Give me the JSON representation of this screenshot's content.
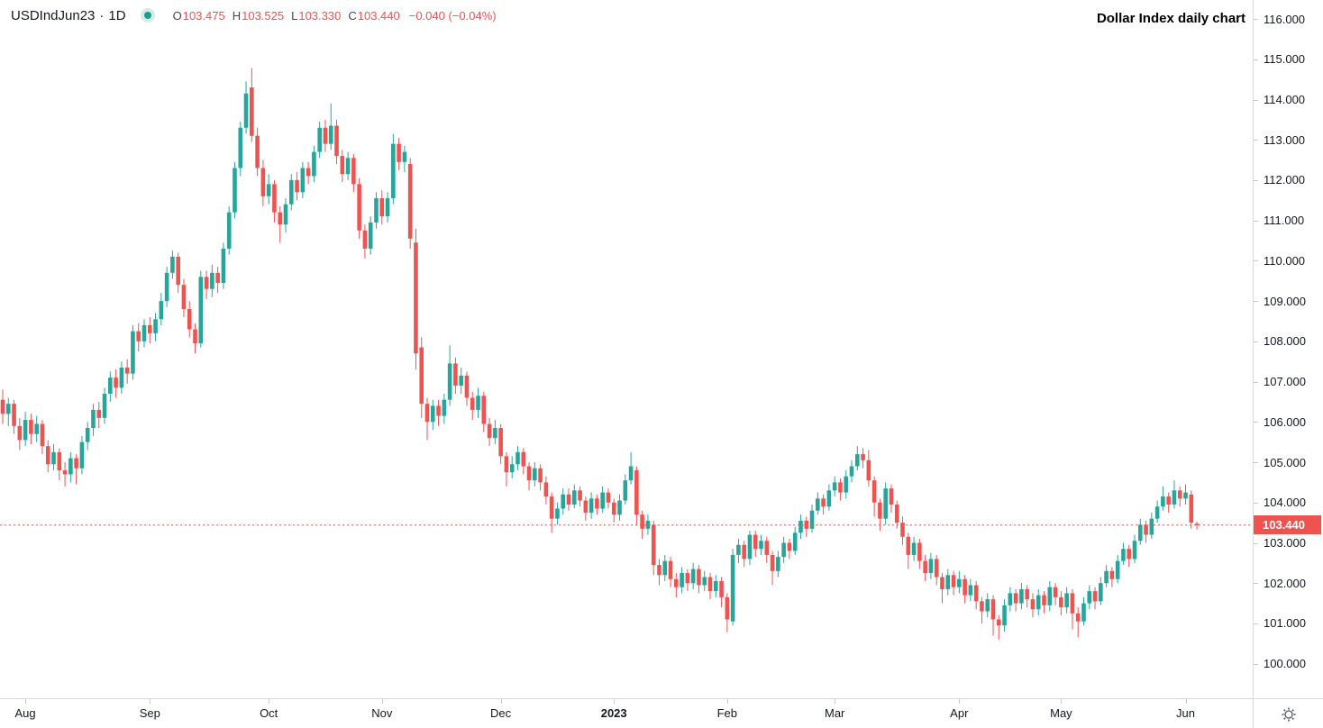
{
  "header": {
    "symbol": "USDIndJun23",
    "separator": "·",
    "interval": "1D",
    "ohlc_items": [
      {
        "label": "O",
        "value": "103.475"
      },
      {
        "label": "H",
        "value": "103.525"
      },
      {
        "label": "L",
        "value": "103.330"
      },
      {
        "label": "C",
        "value": "103.440"
      }
    ],
    "change": "−0.040 (−0.04%)"
  },
  "title": "Dollar Index daily chart",
  "price_axis": {
    "last_price_label": "103.440"
  },
  "colors": {
    "up": "#26a69a",
    "down": "#ef5350",
    "last_price": "#ef5350",
    "text": "#131722",
    "axis_line": "#d6d9de"
  },
  "chart_data": {
    "type": "candlestick",
    "title": "Dollar Index daily chart",
    "symbol": "USDIndJun23",
    "interval": "1D",
    "last_close": 103.44,
    "ohlc_last": {
      "open": 103.475,
      "high": 103.525,
      "low": 103.33,
      "close": 103.44,
      "change": -0.04,
      "change_pct": "-0.04%"
    },
    "ylim": [
      99.3,
      116.5
    ],
    "grid": false,
    "price_ticks": [
      116,
      115,
      114,
      113,
      112,
      111,
      110,
      109,
      108,
      107,
      106,
      105,
      104,
      103,
      102,
      101,
      100
    ],
    "time_ticks": [
      {
        "label": "Aug",
        "index": 4
      },
      {
        "label": "Sep",
        "index": 26
      },
      {
        "label": "Oct",
        "index": 47
      },
      {
        "label": "Nov",
        "index": 67
      },
      {
        "label": "Dec",
        "index": 88
      },
      {
        "label": "2023",
        "index": 108,
        "bold": true
      },
      {
        "label": "Feb",
        "index": 128
      },
      {
        "label": "Mar",
        "index": 147
      },
      {
        "label": "Apr",
        "index": 169
      },
      {
        "label": "May",
        "index": 187
      },
      {
        "label": "Jun",
        "index": 209
      }
    ],
    "candles": [
      [
        106.55,
        106.8,
        105.95,
        106.2
      ],
      [
        106.2,
        106.6,
        105.9,
        106.45
      ],
      [
        106.45,
        106.55,
        105.7,
        105.9
      ],
      [
        105.9,
        106.1,
        105.3,
        105.55
      ],
      [
        105.55,
        106.25,
        105.4,
        106.05
      ],
      [
        106.05,
        106.2,
        105.45,
        105.7
      ],
      [
        105.7,
        106.15,
        105.5,
        105.95
      ],
      [
        105.95,
        106.05,
        105.2,
        105.4
      ],
      [
        105.4,
        105.55,
        104.75,
        104.95
      ],
      [
        104.95,
        105.45,
        104.8,
        105.25
      ],
      [
        105.25,
        105.35,
        104.55,
        104.8
      ],
      [
        104.8,
        105.0,
        104.4,
        104.7
      ],
      [
        104.7,
        105.25,
        104.5,
        105.1
      ],
      [
        105.1,
        105.2,
        104.45,
        104.85
      ],
      [
        104.85,
        105.65,
        104.7,
        105.5
      ],
      [
        105.5,
        106.0,
        105.3,
        105.85
      ],
      [
        105.85,
        106.45,
        105.65,
        106.3
      ],
      [
        106.3,
        106.5,
        105.85,
        106.1
      ],
      [
        106.1,
        106.85,
        105.95,
        106.7
      ],
      [
        106.7,
        107.25,
        106.5,
        107.1
      ],
      [
        107.1,
        107.3,
        106.6,
        106.85
      ],
      [
        106.85,
        107.5,
        106.7,
        107.35
      ],
      [
        107.35,
        107.55,
        106.95,
        107.2
      ],
      [
        107.2,
        108.4,
        107.05,
        108.25
      ],
      [
        108.25,
        108.45,
        107.75,
        108.0
      ],
      [
        108.0,
        108.55,
        107.85,
        108.4
      ],
      [
        108.4,
        108.6,
        107.95,
        108.2
      ],
      [
        108.2,
        108.7,
        108.0,
        108.55
      ],
      [
        108.55,
        109.2,
        108.4,
        109.0
      ],
      [
        109.0,
        109.85,
        108.85,
        109.7
      ],
      [
        109.7,
        110.25,
        109.55,
        110.1
      ],
      [
        110.1,
        110.2,
        109.2,
        109.4
      ],
      [
        109.4,
        109.55,
        108.6,
        108.8
      ],
      [
        108.8,
        109.0,
        108.1,
        108.3
      ],
      [
        108.3,
        108.45,
        107.7,
        107.95
      ],
      [
        107.95,
        109.75,
        107.85,
        109.6
      ],
      [
        109.6,
        109.75,
        109.05,
        109.3
      ],
      [
        109.3,
        109.9,
        109.1,
        109.7
      ],
      [
        109.7,
        109.85,
        109.2,
        109.45
      ],
      [
        109.45,
        110.45,
        109.3,
        110.3
      ],
      [
        110.3,
        111.35,
        110.15,
        111.2
      ],
      [
        111.2,
        112.45,
        111.05,
        112.3
      ],
      [
        112.3,
        113.45,
        112.1,
        113.3
      ],
      [
        113.3,
        114.45,
        113.15,
        114.15
      ],
      [
        114.3,
        114.78,
        112.95,
        113.1
      ],
      [
        113.1,
        113.3,
        112.1,
        112.3
      ],
      [
        112.3,
        112.5,
        111.35,
        111.6
      ],
      [
        111.6,
        112.15,
        111.4,
        111.9
      ],
      [
        111.9,
        112.0,
        110.95,
        111.2
      ],
      [
        111.2,
        111.35,
        110.45,
        110.9
      ],
      [
        110.9,
        111.55,
        110.7,
        111.4
      ],
      [
        111.4,
        112.15,
        111.25,
        112.0
      ],
      [
        112.0,
        112.2,
        111.5,
        111.7
      ],
      [
        111.7,
        112.45,
        111.55,
        112.3
      ],
      [
        112.3,
        112.45,
        111.9,
        112.1
      ],
      [
        112.1,
        112.85,
        111.95,
        112.7
      ],
      [
        112.7,
        113.45,
        112.55,
        113.3
      ],
      [
        113.3,
        113.5,
        112.7,
        112.9
      ],
      [
        112.9,
        113.9,
        112.75,
        113.35
      ],
      [
        113.35,
        113.5,
        112.4,
        112.6
      ],
      [
        112.6,
        112.75,
        111.95,
        112.15
      ],
      [
        112.15,
        112.7,
        112.0,
        112.55
      ],
      [
        112.55,
        112.65,
        111.7,
        111.9
      ],
      [
        111.9,
        112.05,
        110.55,
        110.75
      ],
      [
        110.75,
        110.9,
        110.05,
        110.3
      ],
      [
        110.3,
        111.1,
        110.15,
        110.95
      ],
      [
        110.95,
        111.7,
        110.8,
        111.55
      ],
      [
        111.55,
        111.75,
        110.9,
        111.1
      ],
      [
        111.1,
        111.7,
        110.95,
        111.55
      ],
      [
        111.55,
        113.15,
        111.4,
        112.9
      ],
      [
        112.9,
        113.05,
        112.25,
        112.45
      ],
      [
        112.45,
        112.85,
        112.2,
        112.7
      ],
      [
        112.4,
        112.55,
        110.3,
        110.55
      ],
      [
        110.45,
        110.8,
        107.3,
        107.7
      ],
      [
        107.85,
        108.1,
        106.1,
        106.45
      ],
      [
        106.45,
        106.6,
        105.55,
        106.0
      ],
      [
        106.0,
        106.55,
        105.8,
        106.4
      ],
      [
        106.4,
        106.55,
        105.9,
        106.15
      ],
      [
        106.15,
        106.7,
        105.95,
        106.55
      ],
      [
        106.55,
        107.9,
        106.4,
        107.45
      ],
      [
        107.45,
        107.6,
        106.7,
        106.9
      ],
      [
        106.9,
        107.35,
        106.7,
        107.15
      ],
      [
        107.15,
        107.25,
        106.4,
        106.6
      ],
      [
        106.6,
        106.75,
        106.05,
        106.3
      ],
      [
        106.3,
        106.85,
        106.1,
        106.65
      ],
      [
        106.65,
        106.75,
        105.75,
        105.95
      ],
      [
        105.95,
        106.1,
        105.4,
        105.6
      ],
      [
        105.6,
        106.05,
        105.45,
        105.85
      ],
      [
        105.85,
        105.95,
        104.95,
        105.15
      ],
      [
        105.15,
        105.25,
        104.4,
        104.75
      ],
      [
        104.75,
        105.15,
        104.6,
        104.95
      ],
      [
        104.95,
        105.4,
        104.8,
        105.25
      ],
      [
        105.25,
        105.35,
        104.7,
        104.9
      ],
      [
        104.9,
        105.0,
        104.3,
        104.55
      ],
      [
        104.55,
        105.0,
        104.4,
        104.85
      ],
      [
        104.85,
        104.95,
        104.3,
        104.5
      ],
      [
        104.5,
        104.65,
        103.95,
        104.15
      ],
      [
        104.15,
        104.25,
        103.25,
        103.6
      ],
      [
        103.6,
        104.0,
        103.45,
        103.85
      ],
      [
        103.85,
        104.35,
        103.7,
        104.2
      ],
      [
        104.2,
        104.35,
        103.8,
        103.95
      ],
      [
        103.95,
        104.45,
        103.85,
        104.3
      ],
      [
        104.3,
        104.4,
        103.9,
        104.05
      ],
      [
        104.05,
        104.15,
        103.55,
        103.75
      ],
      [
        103.75,
        104.25,
        103.6,
        104.1
      ],
      [
        104.1,
        104.2,
        103.7,
        103.85
      ],
      [
        103.85,
        104.4,
        103.75,
        104.25
      ],
      [
        104.25,
        104.35,
        103.85,
        104.0
      ],
      [
        104.0,
        104.1,
        103.5,
        103.7
      ],
      [
        103.7,
        104.2,
        103.55,
        104.05
      ],
      [
        104.05,
        104.7,
        103.95,
        104.55
      ],
      [
        104.55,
        105.25,
        104.45,
        104.9
      ],
      [
        104.8,
        104.9,
        103.45,
        103.7
      ],
      [
        103.7,
        103.8,
        103.1,
        103.35
      ],
      [
        103.35,
        103.7,
        103.2,
        103.55
      ],
      [
        103.45,
        103.55,
        102.2,
        102.45
      ],
      [
        102.45,
        102.6,
        101.95,
        102.2
      ],
      [
        102.2,
        102.7,
        102.05,
        102.55
      ],
      [
        102.55,
        102.65,
        101.9,
        102.1
      ],
      [
        102.1,
        102.25,
        101.65,
        101.9
      ],
      [
        101.9,
        102.4,
        101.75,
        102.25
      ],
      [
        102.25,
        102.35,
        101.8,
        102.0
      ],
      [
        102.0,
        102.5,
        101.85,
        102.35
      ],
      [
        102.35,
        102.45,
        101.75,
        101.95
      ],
      [
        101.95,
        102.3,
        101.8,
        102.15
      ],
      [
        102.15,
        102.25,
        101.6,
        101.8
      ],
      [
        101.8,
        102.2,
        101.65,
        102.05
      ],
      [
        102.05,
        102.15,
        101.4,
        101.65
      ],
      [
        101.65,
        101.75,
        100.78,
        101.1
      ],
      [
        101.05,
        102.85,
        100.95,
        102.7
      ],
      [
        102.7,
        103.1,
        102.5,
        102.95
      ],
      [
        102.95,
        103.05,
        102.4,
        102.6
      ],
      [
        102.6,
        103.3,
        102.45,
        103.2
      ],
      [
        103.2,
        103.3,
        102.65,
        102.85
      ],
      [
        102.85,
        103.2,
        102.7,
        103.05
      ],
      [
        103.05,
        103.15,
        102.5,
        102.7
      ],
      [
        102.7,
        102.8,
        101.95,
        102.3
      ],
      [
        102.3,
        102.8,
        102.15,
        102.65
      ],
      [
        102.65,
        103.15,
        102.5,
        103.0
      ],
      [
        103.0,
        103.1,
        102.6,
        102.8
      ],
      [
        102.8,
        103.4,
        102.7,
        103.25
      ],
      [
        103.25,
        103.7,
        103.1,
        103.55
      ],
      [
        103.55,
        103.65,
        103.15,
        103.35
      ],
      [
        103.35,
        103.95,
        103.25,
        103.8
      ],
      [
        103.8,
        104.25,
        103.7,
        104.1
      ],
      [
        104.1,
        104.2,
        103.7,
        103.9
      ],
      [
        103.9,
        104.45,
        103.8,
        104.3
      ],
      [
        104.3,
        104.65,
        104.15,
        104.5
      ],
      [
        104.5,
        104.6,
        104.05,
        104.25
      ],
      [
        104.25,
        104.8,
        104.1,
        104.65
      ],
      [
        104.65,
        105.05,
        104.5,
        104.9
      ],
      [
        104.9,
        105.4,
        104.8,
        105.2
      ],
      [
        105.2,
        105.35,
        104.85,
        105.05
      ],
      [
        105.05,
        105.3,
        104.4,
        104.55
      ],
      [
        104.55,
        104.65,
        103.65,
        104.0
      ],
      [
        104.0,
        104.1,
        103.3,
        103.6
      ],
      [
        103.6,
        104.5,
        103.45,
        104.35
      ],
      [
        104.35,
        104.45,
        103.75,
        103.95
      ],
      [
        103.95,
        104.05,
        103.35,
        103.5
      ],
      [
        103.5,
        103.65,
        102.95,
        103.15
      ],
      [
        103.15,
        103.25,
        102.35,
        102.7
      ],
      [
        102.7,
        103.15,
        102.55,
        103.0
      ],
      [
        103.0,
        103.1,
        102.35,
        102.55
      ],
      [
        102.55,
        102.7,
        102.05,
        102.25
      ],
      [
        102.25,
        102.75,
        102.1,
        102.6
      ],
      [
        102.6,
        102.7,
        101.95,
        102.15
      ],
      [
        102.15,
        102.25,
        101.5,
        101.85
      ],
      [
        101.85,
        102.35,
        101.7,
        102.2
      ],
      [
        102.2,
        102.3,
        101.7,
        101.9
      ],
      [
        101.9,
        102.3,
        101.75,
        102.1
      ],
      [
        102.1,
        102.2,
        101.5,
        101.7
      ],
      [
        101.7,
        102.1,
        101.55,
        101.95
      ],
      [
        101.95,
        102.05,
        101.35,
        101.55
      ],
      [
        101.55,
        101.65,
        101.0,
        101.3
      ],
      [
        101.3,
        101.75,
        101.15,
        101.6
      ],
      [
        101.6,
        101.7,
        100.7,
        101.1
      ],
      [
        101.1,
        101.2,
        100.6,
        100.95
      ],
      [
        100.95,
        101.6,
        100.8,
        101.45
      ],
      [
        101.45,
        101.9,
        101.3,
        101.75
      ],
      [
        101.75,
        101.85,
        101.3,
        101.5
      ],
      [
        101.5,
        102.0,
        101.35,
        101.85
      ],
      [
        101.85,
        101.95,
        101.4,
        101.6
      ],
      [
        101.6,
        101.75,
        101.15,
        101.35
      ],
      [
        101.35,
        101.85,
        101.2,
        101.7
      ],
      [
        101.7,
        101.8,
        101.25,
        101.45
      ],
      [
        101.45,
        102.05,
        101.3,
        101.9
      ],
      [
        101.9,
        102.0,
        101.45,
        101.65
      ],
      [
        101.65,
        101.8,
        101.2,
        101.4
      ],
      [
        101.4,
        101.9,
        101.25,
        101.75
      ],
      [
        101.75,
        101.85,
        100.85,
        101.25
      ],
      [
        101.25,
        101.4,
        100.65,
        101.05
      ],
      [
        101.05,
        101.65,
        100.95,
        101.5
      ],
      [
        101.5,
        101.95,
        101.35,
        101.8
      ],
      [
        101.8,
        101.9,
        101.35,
        101.55
      ],
      [
        101.55,
        102.15,
        101.45,
        102.0
      ],
      [
        102.0,
        102.45,
        101.9,
        102.3
      ],
      [
        102.3,
        102.4,
        101.9,
        102.1
      ],
      [
        102.1,
        102.7,
        102.0,
        102.55
      ],
      [
        102.55,
        103.0,
        102.45,
        102.85
      ],
      [
        102.85,
        102.95,
        102.4,
        102.6
      ],
      [
        102.6,
        103.2,
        102.5,
        103.05
      ],
      [
        103.05,
        103.6,
        102.95,
        103.45
      ],
      [
        103.45,
        103.55,
        103.0,
        103.2
      ],
      [
        103.2,
        103.75,
        103.1,
        103.6
      ],
      [
        103.6,
        104.05,
        103.5,
        103.9
      ],
      [
        103.9,
        104.4,
        103.8,
        104.15
      ],
      [
        104.15,
        104.25,
        103.75,
        103.95
      ],
      [
        103.95,
        104.55,
        103.85,
        104.3
      ],
      [
        104.3,
        104.4,
        103.9,
        104.1
      ],
      [
        104.1,
        104.45,
        103.95,
        104.25
      ],
      [
        104.2,
        104.3,
        103.35,
        103.5
      ],
      [
        103.475,
        103.525,
        103.33,
        103.44
      ]
    ]
  }
}
